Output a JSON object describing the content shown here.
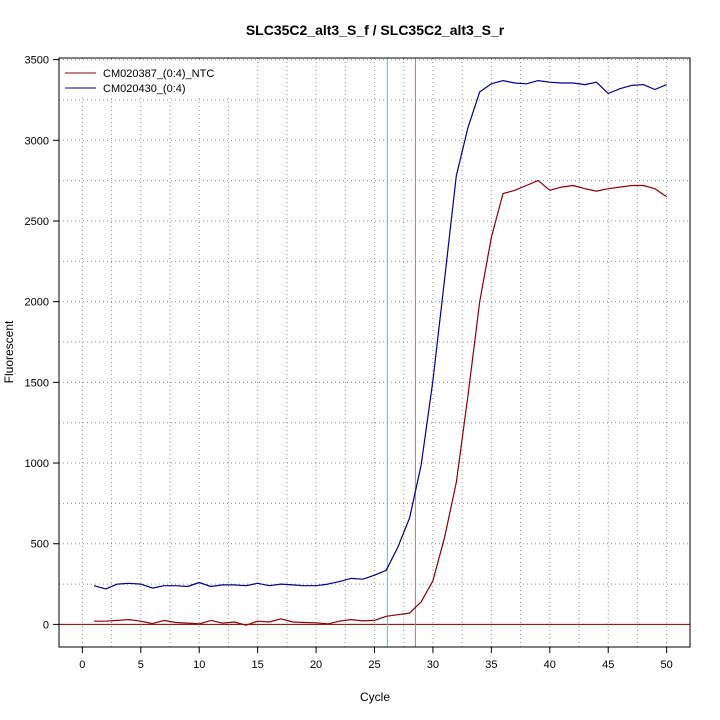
{
  "chart_data": {
    "type": "line",
    "title": "SLC35C2_alt3_S_f / SLC35C2_alt3_S_r",
    "xlabel": "Cycle",
    "ylabel": "Fluorescent",
    "xlim": [
      -2,
      52
    ],
    "ylim": [
      -140,
      3510
    ],
    "x_ticks": [
      0,
      5,
      10,
      15,
      20,
      25,
      30,
      35,
      40,
      45,
      50
    ],
    "y_ticks": [
      0,
      500,
      1000,
      1500,
      2000,
      2500,
      3000,
      3500
    ],
    "grid": true,
    "grid_style": "dotted",
    "legend_position": "top-left",
    "x": [
      1,
      2,
      3,
      4,
      5,
      6,
      7,
      8,
      9,
      10,
      11,
      12,
      13,
      14,
      15,
      16,
      17,
      18,
      19,
      20,
      21,
      22,
      23,
      24,
      25,
      26,
      27,
      28,
      29,
      30,
      31,
      32,
      33,
      34,
      35,
      36,
      37,
      38,
      39,
      40,
      41,
      42,
      43,
      44,
      45,
      46,
      47,
      48,
      49,
      50
    ],
    "series": [
      {
        "name": "CM020387_(0:4)_NTC",
        "color": "#8b0000",
        "values": [
          20,
          20,
          25,
          30,
          20,
          5,
          25,
          12,
          8,
          3,
          25,
          8,
          15,
          -5,
          20,
          15,
          35,
          15,
          12,
          10,
          3,
          20,
          30,
          22,
          25,
          50,
          60,
          70,
          140,
          270,
          540,
          880,
          1420,
          2000,
          2400,
          2670,
          2690,
          2720,
          2750,
          2690,
          2710,
          2720,
          2700,
          2685,
          2700,
          2710,
          2720,
          2720,
          2700,
          2650
        ]
      },
      {
        "name": "CM020430_(0:4)",
        "color": "#00008b",
        "values": [
          240,
          220,
          250,
          255,
          250,
          225,
          240,
          240,
          235,
          260,
          235,
          245,
          245,
          240,
          255,
          240,
          250,
          245,
          240,
          240,
          250,
          265,
          285,
          280,
          305,
          335,
          480,
          660,
          990,
          1510,
          2140,
          2780,
          3080,
          3300,
          3350,
          3370,
          3355,
          3350,
          3370,
          3360,
          3355,
          3355,
          3345,
          3360,
          3290,
          3320,
          3340,
          3345,
          3315,
          3345
        ]
      }
    ],
    "vertical_lines": [
      {
        "x": 26.1,
        "color": "#00e5ee"
      },
      {
        "x": 28.5,
        "color": "#e06666"
      }
    ],
    "horizontal_lines": [
      {
        "y": 0,
        "color": "#8b0000"
      }
    ]
  }
}
